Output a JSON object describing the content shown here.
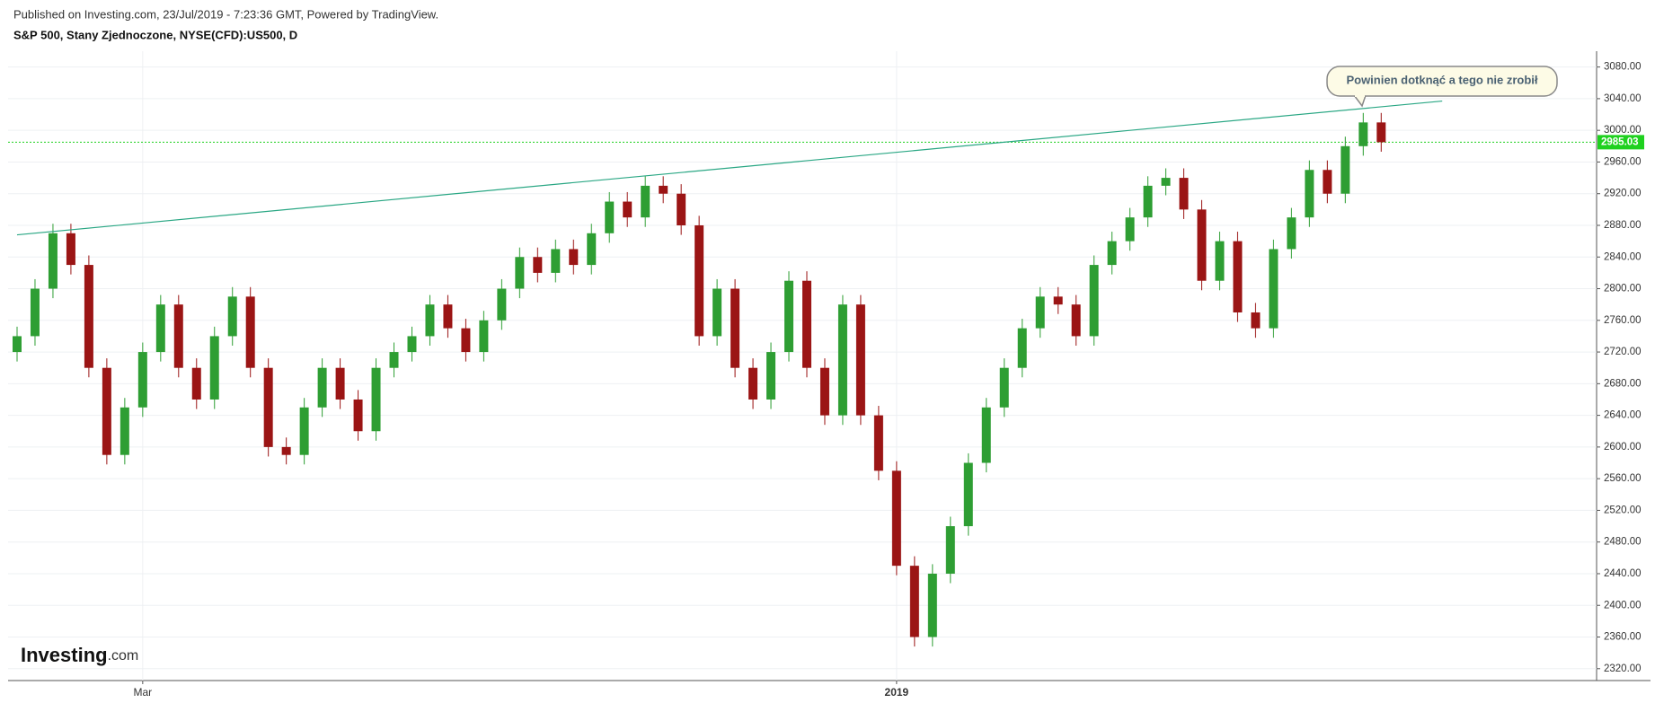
{
  "published": "Published on Investing.com, 23/Jul/2019 - 7:23:36 GMT, Powered by TradingView.",
  "logo": {
    "brand": "Investing",
    "suffix": ".com"
  },
  "chart_data": {
    "type": "candlestick",
    "title": "S&P 500, Stany Zjednoczone, NYSE(CFD):US500, D",
    "up_color": "#2e9e33",
    "down_color": "#9b1515",
    "x": [
      0,
      1,
      2,
      3,
      4,
      5,
      6,
      7,
      8,
      9,
      10,
      11,
      12,
      13,
      14,
      15,
      16,
      17,
      18,
      19,
      20,
      21,
      22,
      23,
      24,
      25,
      26,
      27,
      28,
      29,
      30,
      31,
      32,
      33,
      34,
      35,
      36,
      37,
      38,
      39,
      40,
      41,
      42,
      43,
      44,
      45,
      46,
      47,
      48,
      49,
      50,
      51,
      52,
      53,
      54,
      55,
      56,
      57,
      58,
      59,
      60,
      61,
      62,
      63,
      64,
      65,
      66,
      67,
      68,
      69,
      70,
      71,
      72,
      73,
      74,
      75,
      76
    ],
    "open": [
      2720,
      2740,
      2800,
      2870,
      2830,
      2700,
      2590,
      2650,
      2720,
      2780,
      2700,
      2660,
      2740,
      2790,
      2700,
      2600,
      2590,
      2650,
      2700,
      2660,
      2620,
      2700,
      2720,
      2740,
      2780,
      2750,
      2720,
      2760,
      2800,
      2840,
      2820,
      2850,
      2830,
      2870,
      2910,
      2890,
      2930,
      2920,
      2880,
      2740,
      2800,
      2700,
      2660,
      2720,
      2810,
      2700,
      2640,
      2780,
      2640,
      2570,
      2450,
      2360,
      2440,
      2500,
      2580,
      2650,
      2700,
      2750,
      2790,
      2780,
      2740,
      2830,
      2860,
      2890,
      2930,
      2940,
      2900,
      2810,
      2860,
      2770,
      2750,
      2850,
      2890,
      2950,
      2920,
      2980,
      3010
    ],
    "high": [
      2752,
      2812,
      2882,
      2882,
      2842,
      2712,
      2662,
      2732,
      2792,
      2792,
      2712,
      2752,
      2802,
      2802,
      2712,
      2612,
      2662,
      2712,
      2712,
      2672,
      2712,
      2732,
      2752,
      2792,
      2792,
      2762,
      2772,
      2812,
      2852,
      2852,
      2862,
      2862,
      2882,
      2922,
      2922,
      2942,
      2942,
      2932,
      2892,
      2812,
      2812,
      2712,
      2732,
      2822,
      2822,
      2712,
      2792,
      2792,
      2652,
      2582,
      2462,
      2452,
      2512,
      2592,
      2662,
      2712,
      2762,
      2802,
      2802,
      2792,
      2842,
      2872,
      2902,
      2942,
      2952,
      2952,
      2912,
      2872,
      2872,
      2782,
      2862,
      2902,
      2962,
      2962,
      2992,
      3022,
      3022
    ],
    "low": [
      2708,
      2728,
      2788,
      2818,
      2688,
      2578,
      2578,
      2638,
      2708,
      2688,
      2648,
      2648,
      2728,
      2688,
      2588,
      2578,
      2578,
      2638,
      2648,
      2608,
      2608,
      2688,
      2708,
      2728,
      2738,
      2708,
      2708,
      2748,
      2788,
      2808,
      2808,
      2818,
      2818,
      2858,
      2878,
      2878,
      2908,
      2868,
      2728,
      2728,
      2688,
      2648,
      2648,
      2708,
      2688,
      2628,
      2628,
      2628,
      2558,
      2438,
      2348,
      2348,
      2428,
      2488,
      2568,
      2638,
      2688,
      2738,
      2768,
      2728,
      2728,
      2818,
      2848,
      2878,
      2918,
      2888,
      2798,
      2798,
      2758,
      2738,
      2738,
      2838,
      2878,
      2908,
      2908,
      2968,
      2973
    ],
    "close": [
      2740,
      2800,
      2870,
      2830,
      2700,
      2590,
      2650,
      2720,
      2780,
      2700,
      2660,
      2740,
      2790,
      2700,
      2600,
      2590,
      2650,
      2700,
      2660,
      2620,
      2700,
      2720,
      2740,
      2780,
      2750,
      2720,
      2760,
      2800,
      2840,
      2820,
      2850,
      2830,
      2870,
      2910,
      2890,
      2930,
      2920,
      2880,
      2740,
      2800,
      2700,
      2660,
      2720,
      2810,
      2700,
      2640,
      2780,
      2640,
      2570,
      2450,
      2360,
      2440,
      2500,
      2580,
      2650,
      2700,
      2750,
      2790,
      2780,
      2740,
      2830,
      2860,
      2890,
      2930,
      2940,
      2900,
      2810,
      2860,
      2770,
      2750,
      2850,
      2890,
      2950,
      2920,
      2980,
      3010,
      2985
    ],
    "xlim": [
      -0.5,
      88
    ],
    "xticks": [
      {
        "value": 7,
        "label": "Mar"
      },
      {
        "value": 49,
        "label": "2019"
      }
    ],
    "ylim": [
      2305,
      3100
    ],
    "yticks": [
      {
        "value": 2320,
        "label": "2320.00"
      },
      {
        "value": 2360,
        "label": "2360.00"
      },
      {
        "value": 2400,
        "label": "2400.00"
      },
      {
        "value": 2440,
        "label": "2440.00"
      },
      {
        "value": 2480,
        "label": "2480.00"
      },
      {
        "value": 2520,
        "label": "2520.00"
      },
      {
        "value": 2560,
        "label": "2560.00"
      },
      {
        "value": 2600,
        "label": "2600.00"
      },
      {
        "value": 2640,
        "label": "2640.00"
      },
      {
        "value": 2680,
        "label": "2680.00"
      },
      {
        "value": 2720,
        "label": "2720.00"
      },
      {
        "value": 2760,
        "label": "2760.00"
      },
      {
        "value": 2800,
        "label": "2800.00"
      },
      {
        "value": 2840,
        "label": "2840.00"
      },
      {
        "value": 2880,
        "label": "2880.00"
      },
      {
        "value": 2920,
        "label": "2920.00"
      },
      {
        "value": 2960,
        "label": "2960.00"
      },
      {
        "value": 3000,
        "label": "3000.00"
      },
      {
        "value": 3040,
        "label": "3040.00"
      },
      {
        "value": 3080,
        "label": "3080.00"
      }
    ],
    "grid": true,
    "trendline": {
      "x": [
        0,
        79.4
      ],
      "y": [
        2868,
        3037
      ],
      "color": "#2aa784"
    },
    "last_price": {
      "value": 2985.03,
      "label": "2985.03",
      "color": "#1fd11f"
    },
    "annotation": "Powinien dotknąć a tego nie zrobił"
  }
}
